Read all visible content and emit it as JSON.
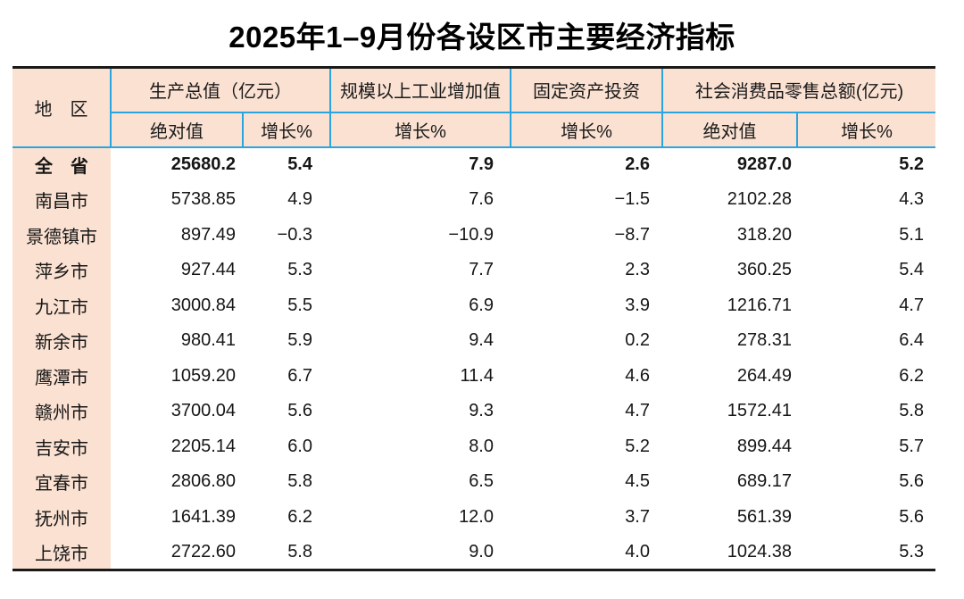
{
  "page": {
    "title": "2025年1–9月份各设区市主要经济指标"
  },
  "table": {
    "header": {
      "region_label": "地　区",
      "groups": [
        {
          "label": "生产总值（亿元）",
          "sub": [
            "绝对值",
            "增长%"
          ]
        },
        {
          "label": "规模以上工业增加值",
          "sub": [
            "增长%"
          ]
        },
        {
          "label": "固定资产投资",
          "sub": [
            "增长%"
          ]
        },
        {
          "label": "社会消费品零售总额(亿元)",
          "sub": [
            "绝对值",
            "增长%"
          ]
        }
      ]
    },
    "rows": [
      {
        "region": "全　省",
        "bold": true,
        "values": [
          "25680.2",
          "5.4",
          "7.9",
          "2.6",
          "9287.0",
          "5.2"
        ]
      },
      {
        "region": "南昌市",
        "bold": false,
        "values": [
          "5738.85",
          "4.9",
          "7.6",
          "−1.5",
          "2102.28",
          "4.3"
        ]
      },
      {
        "region": "景德镇市",
        "bold": false,
        "values": [
          "897.49",
          "−0.3",
          "−10.9",
          "−8.7",
          "318.20",
          "5.1"
        ]
      },
      {
        "region": "萍乡市",
        "bold": false,
        "values": [
          "927.44",
          "5.3",
          "7.7",
          "2.3",
          "360.25",
          "5.4"
        ]
      },
      {
        "region": "九江市",
        "bold": false,
        "values": [
          "3000.84",
          "5.5",
          "6.9",
          "3.9",
          "1216.71",
          "4.7"
        ]
      },
      {
        "region": "新余市",
        "bold": false,
        "values": [
          "980.41",
          "5.9",
          "9.4",
          "0.2",
          "278.31",
          "6.4"
        ]
      },
      {
        "region": "鹰潭市",
        "bold": false,
        "values": [
          "1059.20",
          "6.7",
          "11.4",
          "4.6",
          "264.49",
          "6.2"
        ]
      },
      {
        "region": "赣州市",
        "bold": false,
        "values": [
          "3700.04",
          "5.6",
          "9.3",
          "4.7",
          "1572.41",
          "5.8"
        ]
      },
      {
        "region": "吉安市",
        "bold": false,
        "values": [
          "2205.14",
          "6.0",
          "8.0",
          "5.2",
          "899.44",
          "5.7"
        ]
      },
      {
        "region": "宜春市",
        "bold": false,
        "values": [
          "2806.80",
          "5.8",
          "6.5",
          "4.5",
          "689.17",
          "5.6"
        ]
      },
      {
        "region": "抚州市",
        "bold": false,
        "values": [
          "1641.39",
          "6.2",
          "12.0",
          "3.7",
          "561.39",
          "5.6"
        ]
      },
      {
        "region": "上饶市",
        "bold": false,
        "values": [
          "2722.60",
          "5.8",
          "9.0",
          "4.0",
          "1024.38",
          "5.3"
        ]
      }
    ]
  },
  "colors": {
    "header_bg": "#FAE1D2",
    "grid_blue": "#29A6DF",
    "frame_black": "#1A1A1A",
    "page_bg": "#FFFFFF"
  }
}
